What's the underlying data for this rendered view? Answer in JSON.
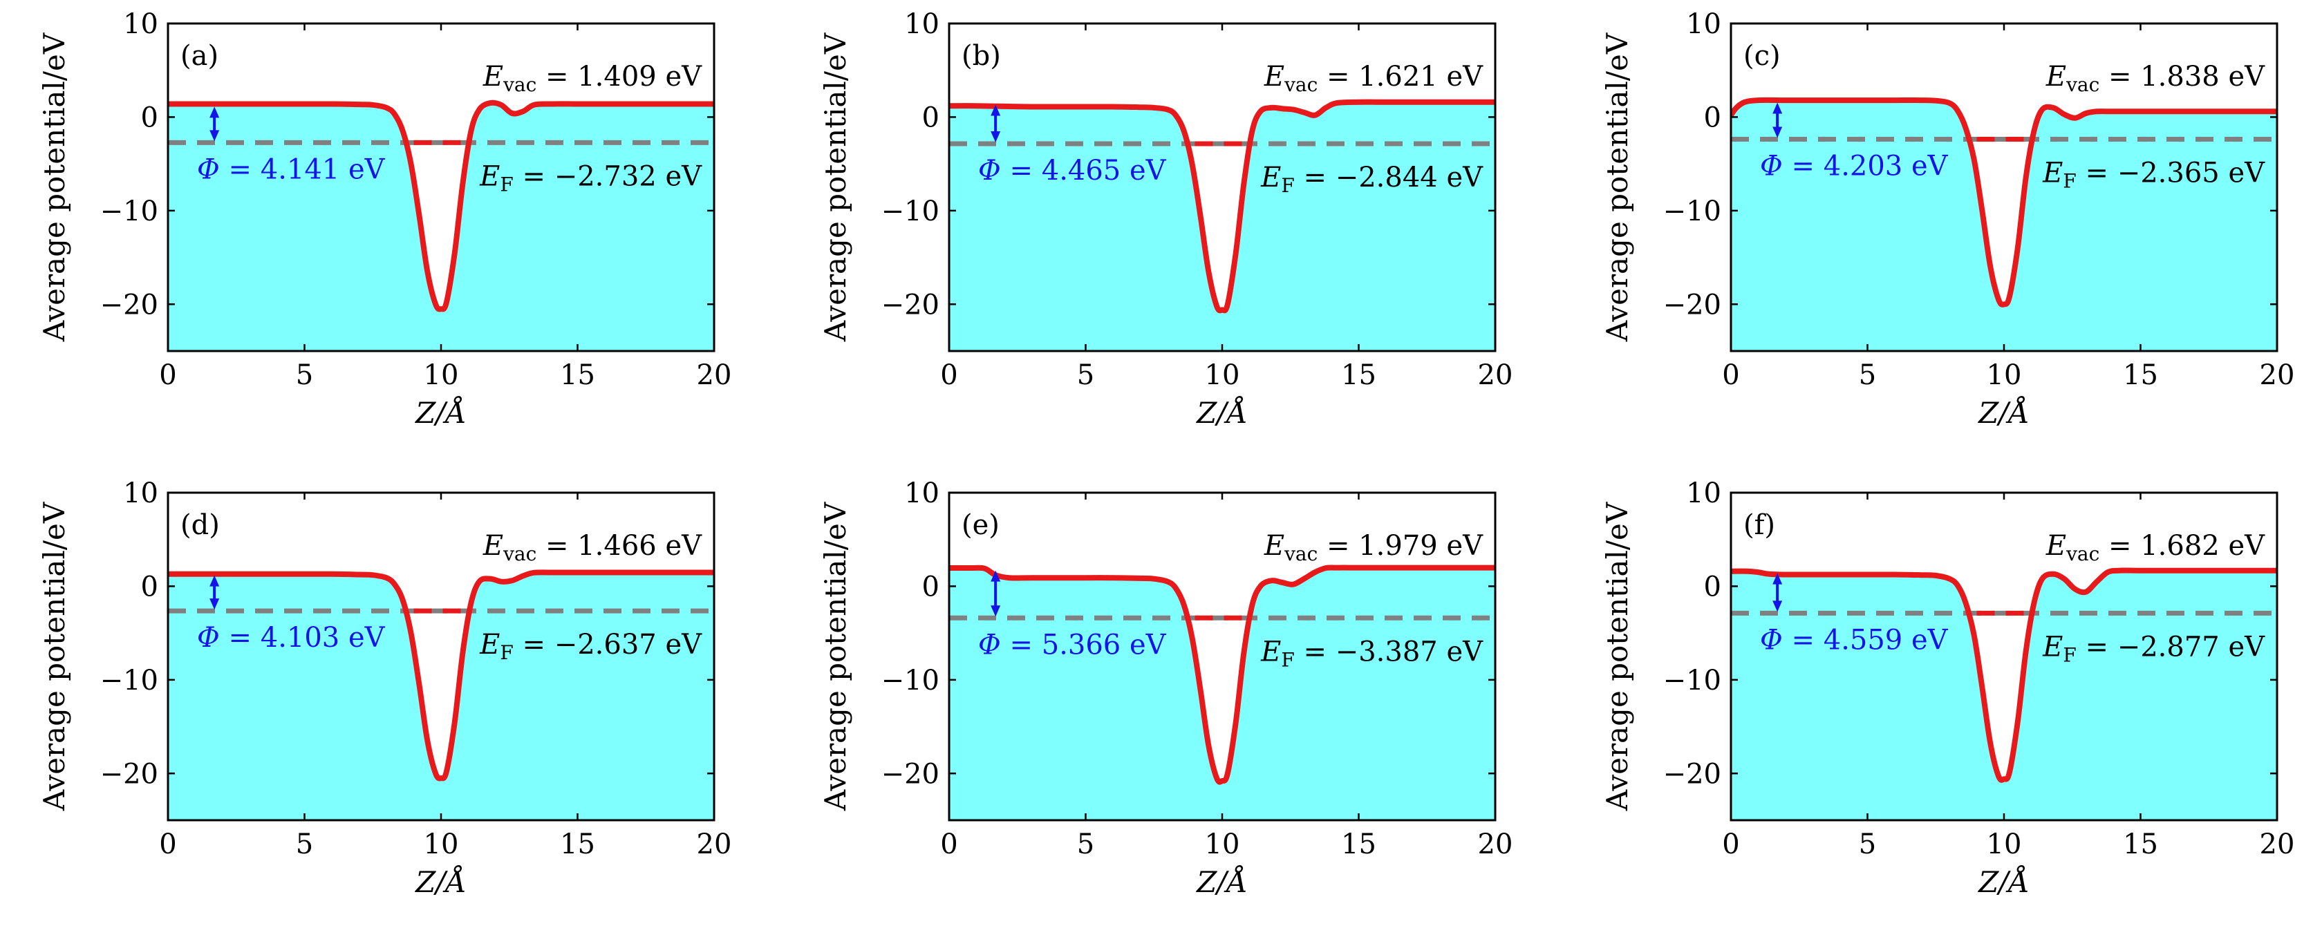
{
  "figure": {
    "ylabel": "Average potential/eV",
    "xlabel": "Z/Å",
    "colors": {
      "fill": "#80FFFF",
      "curve": "#E8191B",
      "fermi_dash": "#808080",
      "fermi_red": "#E8191B",
      "arrow": "#1414E6",
      "phi_text": "#1414E6"
    }
  },
  "chart_data": [
    {
      "type": "line",
      "label": "(a)",
      "vac_label": "E",
      "vac_sub": "vac",
      "vac_text": " = 1.409 eV",
      "fermi_label": "E",
      "fermi_sub": "F",
      "fermi_text": " = −2.732 eV",
      "phi_label": "Φ",
      "phi_text": " = 4.141 eV",
      "E_vac": 1.409,
      "E_F": -2.732,
      "Phi": 4.141,
      "x": [
        0,
        1,
        2,
        3,
        4,
        5,
        6,
        7,
        7.5,
        8,
        8.3,
        8.6,
        8.9,
        9.2,
        9.5,
        9.8,
        10.0,
        10.2,
        10.5,
        10.8,
        11.1,
        11.4,
        11.8,
        12.2,
        12.6,
        13.0,
        13.4,
        14,
        15,
        16,
        17,
        18,
        19,
        20
      ],
      "y": [
        1.4,
        1.4,
        1.4,
        1.4,
        1.4,
        1.4,
        1.4,
        1.35,
        1.3,
        1.0,
        0.3,
        -1.5,
        -5.0,
        -10.5,
        -16.5,
        -20.0,
        -20.5,
        -19.8,
        -14.5,
        -7.0,
        -1.5,
        0.8,
        1.5,
        1.3,
        0.4,
        0.6,
        1.3,
        1.4,
        1.4,
        1.4,
        1.4,
        1.4,
        1.4,
        1.4
      ],
      "xlim": [
        0,
        20
      ],
      "ylim": [
        -25,
        10
      ],
      "xticks": [
        0,
        5,
        10,
        15,
        20
      ],
      "yticks": [
        -20,
        -10,
        0,
        10
      ],
      "xtick_labels": [
        "0",
        "5",
        "10",
        "15",
        "20"
      ],
      "ytick_labels": [
        "−20",
        "−10",
        "0",
        "10"
      ],
      "arrow_x": 1.7,
      "fermi_red_dash_x": [
        9.0,
        11.0
      ]
    },
    {
      "type": "line",
      "label": "(b)",
      "vac_label": "E",
      "vac_sub": "vac",
      "vac_text": " = 1.621 eV",
      "fermi_label": "E",
      "fermi_sub": "F",
      "fermi_text": " = −2.844 eV",
      "phi_label": "Φ",
      "phi_text": " = 4.465 eV",
      "E_vac": 1.621,
      "E_F": -2.844,
      "Phi": 4.465,
      "x": [
        0,
        1,
        2,
        3,
        4,
        5,
        6,
        7,
        7.5,
        8,
        8.3,
        8.6,
        8.9,
        9.2,
        9.5,
        9.8,
        10.0,
        10.2,
        10.5,
        10.8,
        11.1,
        11.4,
        11.8,
        12.2,
        12.6,
        13.0,
        13.4,
        13.8,
        14.2,
        15,
        16,
        17,
        18,
        19,
        20
      ],
      "y": [
        1.2,
        1.2,
        1.15,
        1.1,
        1.1,
        1.1,
        1.1,
        1.05,
        1.0,
        0.8,
        0.2,
        -1.5,
        -5.0,
        -10.5,
        -16.5,
        -20.2,
        -20.6,
        -20.0,
        -14.5,
        -7.0,
        -1.5,
        0.6,
        1.0,
        0.9,
        0.8,
        0.5,
        0.2,
        1.0,
        1.5,
        1.6,
        1.6,
        1.6,
        1.6,
        1.6,
        1.6
      ],
      "xlim": [
        0,
        20
      ],
      "ylim": [
        -25,
        10
      ],
      "xticks": [
        0,
        5,
        10,
        15,
        20
      ],
      "yticks": [
        -20,
        -10,
        0,
        10
      ],
      "xtick_labels": [
        "0",
        "5",
        "10",
        "15",
        "20"
      ],
      "ytick_labels": [
        "−20",
        "−10",
        "0",
        "10"
      ],
      "arrow_x": 1.7,
      "fermi_red_dash_x": [
        9.0,
        11.0
      ]
    },
    {
      "type": "line",
      "label": "(c)",
      "vac_label": "E",
      "vac_sub": "vac",
      "vac_text": " = 1.838 eV",
      "fermi_label": "E",
      "fermi_sub": "F",
      "fermi_text": " = −2.365 eV",
      "phi_label": "Φ",
      "phi_text": " = 4.203 eV",
      "E_vac": 1.838,
      "E_F": -2.365,
      "Phi": 4.203,
      "x": [
        0,
        0.2,
        0.5,
        1,
        2,
        3,
        4,
        5,
        6,
        7,
        7.5,
        8,
        8.3,
        8.6,
        8.9,
        9.2,
        9.5,
        9.8,
        10.0,
        10.2,
        10.5,
        10.8,
        11.1,
        11.4,
        11.8,
        12.2,
        12.6,
        13.0,
        13.4,
        14,
        15,
        16,
        17,
        18,
        19,
        20
      ],
      "y": [
        0.2,
        1.0,
        1.6,
        1.8,
        1.8,
        1.8,
        1.8,
        1.8,
        1.8,
        1.8,
        1.75,
        1.5,
        0.7,
        -1.2,
        -4.5,
        -10.0,
        -16.0,
        -19.5,
        -20.0,
        -19.2,
        -14.0,
        -6.5,
        -1.5,
        0.8,
        1.0,
        0.3,
        -0.1,
        0.4,
        0.6,
        0.6,
        0.6,
        0.6,
        0.6,
        0.6,
        0.6,
        0.6
      ],
      "xlim": [
        0,
        20
      ],
      "ylim": [
        -25,
        10
      ],
      "xticks": [
        0,
        5,
        10,
        15,
        20
      ],
      "yticks": [
        -20,
        -10,
        0,
        10
      ],
      "xtick_labels": [
        "0",
        "5",
        "10",
        "15",
        "20"
      ],
      "ytick_labels": [
        "−20",
        "−10",
        "0",
        "10"
      ],
      "arrow_x": 1.7,
      "fermi_red_dash_x": [
        9.0,
        11.0
      ]
    },
    {
      "type": "line",
      "label": "(d)",
      "vac_label": "E",
      "vac_sub": "vac",
      "vac_text": " = 1.466 eV",
      "fermi_label": "E",
      "fermi_sub": "F",
      "fermi_text": " = −2.637 eV",
      "phi_label": "Φ",
      "phi_text": " = 4.103 eV",
      "E_vac": 1.466,
      "E_F": -2.637,
      "Phi": 4.103,
      "x": [
        0,
        1,
        2,
        3,
        4,
        5,
        6,
        7,
        7.5,
        8,
        8.3,
        8.6,
        8.9,
        9.2,
        9.5,
        9.8,
        10.0,
        10.2,
        10.5,
        10.8,
        11.1,
        11.4,
        11.8,
        12.2,
        12.6,
        13.0,
        13.4,
        14,
        15,
        16,
        17,
        18,
        19,
        20
      ],
      "y": [
        1.3,
        1.3,
        1.3,
        1.3,
        1.3,
        1.3,
        1.3,
        1.25,
        1.2,
        0.9,
        0.2,
        -1.5,
        -5.0,
        -10.5,
        -16.5,
        -20.0,
        -20.5,
        -19.8,
        -14.5,
        -7.0,
        -1.8,
        0.5,
        0.8,
        0.5,
        0.6,
        1.1,
        1.45,
        1.47,
        1.47,
        1.47,
        1.47,
        1.47,
        1.47,
        1.47
      ],
      "xlim": [
        0,
        20
      ],
      "ylim": [
        -25,
        10
      ],
      "xticks": [
        0,
        5,
        10,
        15,
        20
      ],
      "yticks": [
        -20,
        -10,
        0,
        10
      ],
      "xtick_labels": [
        "0",
        "5",
        "10",
        "15",
        "20"
      ],
      "ytick_labels": [
        "−20",
        "−10",
        "0",
        "10"
      ],
      "arrow_x": 1.7,
      "fermi_red_dash_x": [
        9.0,
        11.0
      ]
    },
    {
      "type": "line",
      "label": "(e)",
      "vac_label": "E",
      "vac_sub": "vac",
      "vac_text": " = 1.979 eV",
      "fermi_label": "E",
      "fermi_sub": "F",
      "fermi_text": " = −3.387 eV",
      "phi_label": "Φ",
      "phi_text": " = 5.366 eV",
      "E_vac": 1.979,
      "E_F": -3.387,
      "Phi": 5.366,
      "x": [
        0,
        0.8,
        1.3,
        1.7,
        2.2,
        3,
        4,
        5,
        6,
        7,
        7.5,
        8,
        8.3,
        8.6,
        8.9,
        9.2,
        9.5,
        9.8,
        10.0,
        10.2,
        10.5,
        10.8,
        11.1,
        11.4,
        11.8,
        12.2,
        12.6,
        13.0,
        13.4,
        13.8,
        14.2,
        15,
        16,
        17,
        18,
        19,
        20
      ],
      "y": [
        1.95,
        1.95,
        1.9,
        1.2,
        0.9,
        0.9,
        0.9,
        0.9,
        0.9,
        0.85,
        0.8,
        0.5,
        -0.2,
        -2.0,
        -5.5,
        -11.0,
        -17.0,
        -20.5,
        -20.8,
        -20.0,
        -14.5,
        -7.0,
        -2.0,
        0.0,
        0.6,
        0.4,
        0.2,
        0.8,
        1.5,
        1.95,
        1.98,
        1.98,
        1.98,
        1.98,
        1.98,
        1.98,
        1.98
      ],
      "xlim": [
        0,
        20
      ],
      "ylim": [
        -25,
        10
      ],
      "xticks": [
        0,
        5,
        10,
        15,
        20
      ],
      "yticks": [
        -20,
        -10,
        0,
        10
      ],
      "xtick_labels": [
        "0",
        "5",
        "10",
        "15",
        "20"
      ],
      "ytick_labels": [
        "−20",
        "−10",
        "0",
        "10"
      ],
      "arrow_x": 1.7,
      "fermi_red_dash_x": [
        9.0,
        11.0
      ]
    },
    {
      "type": "line",
      "label": "(f)",
      "vac_label": "E",
      "vac_sub": "vac",
      "vac_text": " = 1.682 eV",
      "fermi_label": "E",
      "fermi_sub": "F",
      "fermi_text": " = −2.877 eV",
      "phi_label": "Φ",
      "phi_text": " = 4.559 eV",
      "E_vac": 1.682,
      "E_F": -2.877,
      "Phi": 4.559,
      "x": [
        0,
        0.6,
        1.0,
        1.4,
        2,
        3,
        4,
        5,
        6,
        7,
        7.5,
        8,
        8.3,
        8.6,
        8.9,
        9.2,
        9.5,
        9.8,
        10.0,
        10.2,
        10.5,
        10.8,
        11.1,
        11.4,
        11.8,
        12.2,
        12.6,
        13.0,
        13.4,
        13.8,
        14.2,
        15,
        16,
        17,
        18,
        19,
        20
      ],
      "y": [
        1.6,
        1.6,
        1.5,
        1.3,
        1.25,
        1.25,
        1.25,
        1.25,
        1.25,
        1.2,
        1.15,
        0.8,
        0.1,
        -1.8,
        -5.2,
        -10.8,
        -16.8,
        -20.3,
        -20.6,
        -19.9,
        -14.5,
        -7.0,
        -1.8,
        0.8,
        1.3,
        0.8,
        -0.3,
        -0.6,
        0.5,
        1.5,
        1.68,
        1.68,
        1.68,
        1.68,
        1.68,
        1.68,
        1.68
      ],
      "xlim": [
        0,
        20
      ],
      "ylim": [
        -25,
        10
      ],
      "xticks": [
        0,
        5,
        10,
        15,
        20
      ],
      "yticks": [
        -20,
        -10,
        0,
        10
      ],
      "xtick_labels": [
        "0",
        "5",
        "10",
        "15",
        "20"
      ],
      "ytick_labels": [
        "−20",
        "−10",
        "0",
        "10"
      ],
      "arrow_x": 1.7,
      "fermi_red_dash_x": [
        9.0,
        11.0
      ]
    }
  ]
}
